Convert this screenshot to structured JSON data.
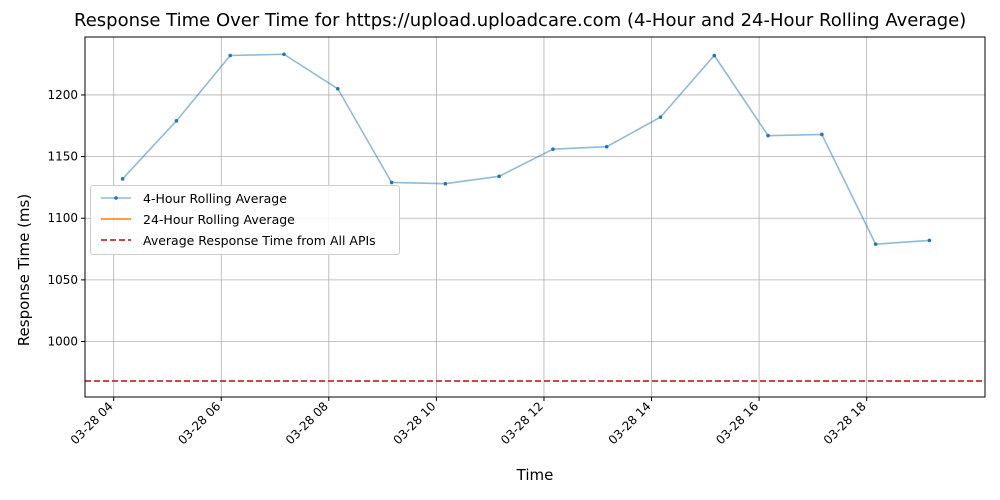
{
  "chart_data": {
    "type": "line",
    "title": "Response Time Over Time for https://upload.uploadcare.com (4-Hour and 24-Hour Rolling Average)",
    "xlabel": "Time",
    "ylabel": "Response Time (ms)",
    "x_ticks": [
      "03-28 04",
      "03-28 06",
      "03-28 08",
      "03-28 10",
      "03-28 12",
      "03-28 14",
      "03-28 16",
      "03-28 18"
    ],
    "y_ticks": [
      "1000",
      "1050",
      "1100",
      "1150",
      "1200"
    ],
    "xlim": [
      "03-28 03:28",
      "03-28 20:12"
    ],
    "ylim": [
      955,
      1247
    ],
    "grid": true,
    "legend_position": "center-left",
    "series": [
      {
        "name": "4-Hour Rolling Average",
        "color": "#1f77b4",
        "style": "solid-with-markers",
        "x": [
          "03-28 04:10",
          "03-28 05:10",
          "03-28 06:10",
          "03-28 07:10",
          "03-28 08:10",
          "03-28 09:10",
          "03-28 10:10",
          "03-28 11:10",
          "03-28 12:10",
          "03-28 13:10",
          "03-28 14:10",
          "03-28 15:10",
          "03-28 16:10",
          "03-28 17:10",
          "03-28 18:10",
          "03-28 19:10"
        ],
        "values": [
          1132,
          1179,
          1232,
          1233,
          1205,
          1129,
          1128,
          1134,
          1156,
          1158,
          1182,
          1232,
          1167,
          1168,
          1079,
          1082
        ]
      },
      {
        "name": "24-Hour Rolling Average",
        "color": "#ff7f0e",
        "style": "solid",
        "x": [],
        "values": []
      },
      {
        "name": "Average Response Time from All APIs",
        "color": "#d62728",
        "style": "dashed-horizontal",
        "value": 968
      }
    ]
  }
}
